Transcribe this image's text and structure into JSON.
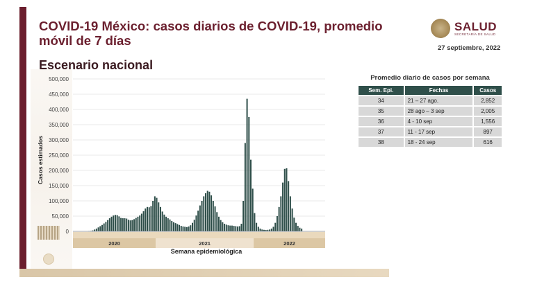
{
  "slide": {
    "title": "COVID-19 México: casos diarios de COVID-19, promedio móvil de 7 días",
    "subtitle": "Escenario nacional",
    "date": "27 septiembre, 2022",
    "logo": {
      "name": "SALUD",
      "sub": "SECRETARÍA DE SALUD"
    },
    "colors": {
      "maroon": "#6b1f2e",
      "bar": "#2f4f4a",
      "gold": "#d9c6a7"
    }
  },
  "chart_data": {
    "type": "bar",
    "ylabel": "Casos estimados",
    "xlabel": "Semana epidemiológica",
    "ylim": [
      0,
      500000
    ],
    "yticks": [
      0,
      50000,
      100000,
      150000,
      200000,
      250000,
      300000,
      350000,
      400000,
      450000,
      500000
    ],
    "ytick_labels": [
      "0",
      "50,000",
      "100,000",
      "150,000",
      "200,000",
      "250,000",
      "300,000",
      "350,000",
      "400,000",
      "450,000",
      "500,000"
    ],
    "grid": true,
    "years": [
      {
        "label": "2020",
        "weeks": 44
      },
      {
        "label": "2021",
        "weeks": 52
      },
      {
        "label": "2022",
        "weeks": 38
      }
    ],
    "values": [
      0,
      0,
      0,
      0,
      0,
      0,
      0,
      0,
      500,
      1500,
      3000,
      6000,
      9000,
      13000,
      17000,
      21000,
      26000,
      31000,
      37000,
      43000,
      48000,
      52000,
      54000,
      53000,
      49000,
      44000,
      43000,
      43000,
      42000,
      38000,
      36000,
      37000,
      40000,
      44000,
      48000,
      52000,
      58000,
      66000,
      75000,
      80000,
      79000,
      83000,
      100000,
      115000,
      110000,
      95000,
      80000,
      65000,
      55000,
      48000,
      43000,
      39000,
      34000,
      30000,
      27000,
      24000,
      21000,
      18000,
      16000,
      15000,
      14000,
      16000,
      20000,
      28000,
      38000,
      52000,
      68000,
      85000,
      100000,
      115000,
      125000,
      133000,
      130000,
      118000,
      100000,
      82000,
      63000,
      48000,
      37000,
      30000,
      25000,
      22000,
      20000,
      19000,
      19000,
      18000,
      17000,
      16000,
      17000,
      25000,
      100000,
      290000,
      435000,
      375000,
      235000,
      140000,
      60000,
      28000,
      15000,
      9000,
      6000,
      5000,
      4500,
      5000,
      6000,
      9000,
      15000,
      28000,
      50000,
      80000,
      115000,
      160000,
      205000,
      207000,
      165000,
      115000,
      75000,
      45000,
      28000,
      18000,
      12000,
      9000,
      0,
      0,
      0,
      0,
      0,
      0,
      0,
      0,
      0,
      0,
      0,
      0
    ]
  },
  "table": {
    "title": "Promedio diario de casos por semana",
    "headers": [
      "Sem. Epi.",
      "Fechas",
      "Casos"
    ],
    "rows": [
      [
        "34",
        "21 – 27 ago.",
        "2,852"
      ],
      [
        "35",
        "28 ago – 3 sep",
        "2,005"
      ],
      [
        "36",
        "4 - 10 sep",
        "1,556"
      ],
      [
        "37",
        "11 - 17 sep",
        "897"
      ],
      [
        "38",
        "18 - 24 sep",
        "616"
      ]
    ]
  }
}
